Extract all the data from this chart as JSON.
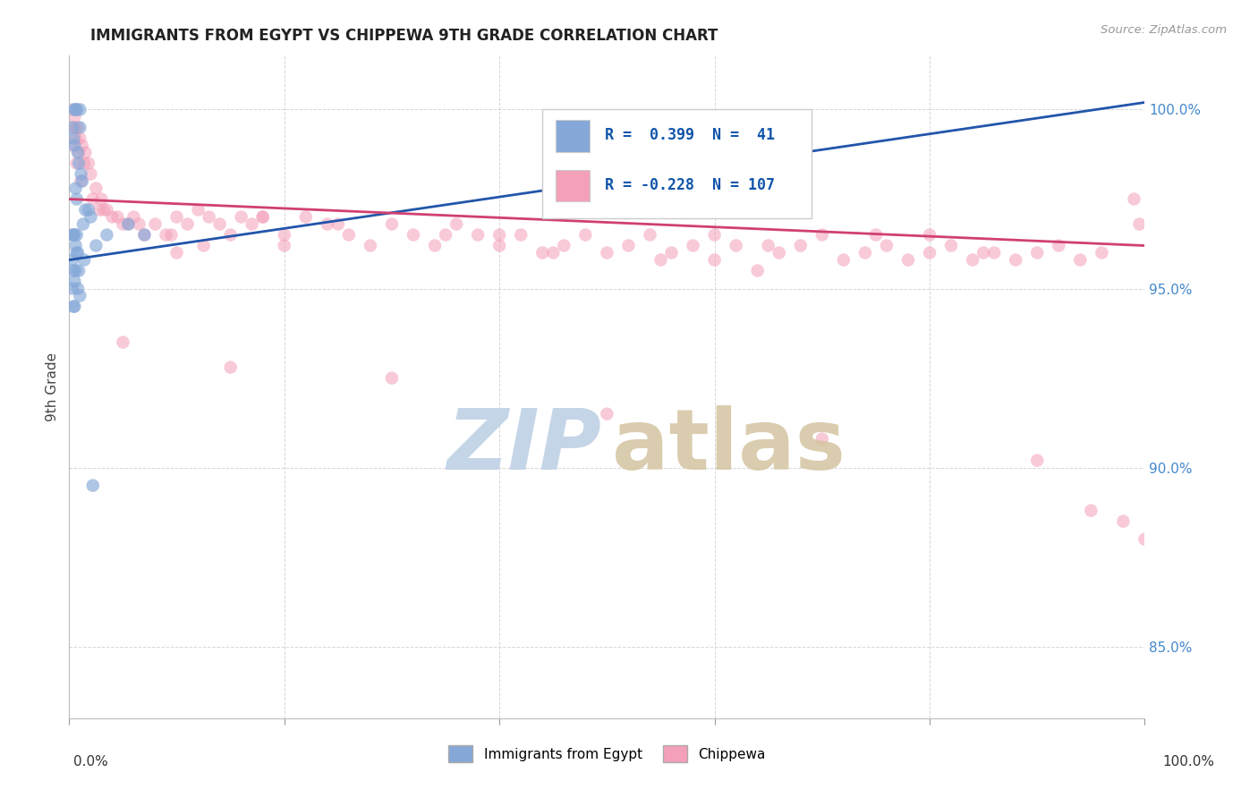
{
  "title": "IMMIGRANTS FROM EGYPT VS CHIPPEWA 9TH GRADE CORRELATION CHART",
  "source": "Source: ZipAtlas.com",
  "ylabel": "9th Grade",
  "xlim": [
    0.0,
    100.0
  ],
  "ylim": [
    83.0,
    101.5
  ],
  "yticks": [
    85.0,
    90.0,
    95.0,
    100.0
  ],
  "ytick_labels": [
    "85.0%",
    "90.0%",
    "95.0%",
    "100.0%"
  ],
  "xticks": [
    0.0,
    20.0,
    40.0,
    60.0,
    80.0,
    100.0
  ],
  "blue_R": 0.399,
  "blue_N": 41,
  "pink_R": -0.228,
  "pink_N": 107,
  "blue_color": "#85a8d8",
  "pink_color": "#f4a0b8",
  "blue_line_color": "#2255aa",
  "pink_line_color": "#d04070",
  "background_color": "#ffffff",
  "grid_color": "#cccccc",
  "blue_line_x0": 0.0,
  "blue_line_y0": 95.8,
  "blue_line_x1": 100.0,
  "blue_line_y1": 100.2,
  "pink_line_x0": 0.0,
  "pink_line_y0": 97.5,
  "pink_line_x1": 100.0,
  "pink_line_y1": 96.2,
  "blue_x": [
    0.5,
    0.6,
    0.7,
    1.0,
    1.0,
    0.3,
    0.4,
    0.5,
    0.8,
    0.9,
    1.1,
    1.2,
    0.6,
    0.7,
    1.5,
    2.0,
    1.8,
    1.3,
    0.4,
    0.3,
    0.6,
    0.8,
    0.5,
    0.7,
    0.3,
    0.4,
    0.6,
    0.5,
    0.8,
    1.0,
    0.9,
    0.7,
    1.4,
    3.5,
    5.5,
    7.0,
    2.5,
    0.3,
    0.5,
    0.4,
    2.2
  ],
  "blue_y": [
    100.0,
    100.0,
    100.0,
    100.0,
    99.5,
    99.5,
    99.2,
    99.0,
    98.8,
    98.5,
    98.2,
    98.0,
    97.8,
    97.5,
    97.2,
    97.0,
    97.2,
    96.8,
    96.5,
    96.5,
    96.2,
    96.0,
    96.5,
    96.5,
    95.8,
    95.5,
    95.5,
    95.2,
    95.0,
    94.8,
    95.5,
    96.0,
    95.8,
    96.5,
    96.8,
    96.5,
    96.2,
    95.0,
    94.5,
    94.5,
    89.5
  ],
  "pink_x": [
    0.3,
    0.5,
    0.8,
    1.0,
    1.2,
    1.5,
    1.8,
    2.0,
    2.5,
    3.0,
    3.5,
    4.0,
    5.0,
    6.0,
    7.0,
    8.0,
    9.0,
    10.0,
    11.0,
    12.0,
    13.0,
    14.0,
    15.0,
    16.0,
    17.0,
    18.0,
    20.0,
    22.0,
    24.0,
    26.0,
    28.0,
    30.0,
    32.0,
    34.0,
    36.0,
    38.0,
    40.0,
    42.0,
    44.0,
    46.0,
    48.0,
    50.0,
    52.0,
    54.0,
    56.0,
    58.0,
    60.0,
    62.0,
    64.0,
    66.0,
    68.0,
    70.0,
    72.0,
    74.0,
    76.0,
    78.0,
    80.0,
    82.0,
    84.0,
    86.0,
    88.0,
    90.0,
    92.0,
    94.0,
    96.0,
    98.0,
    100.0,
    0.4,
    0.6,
    0.9,
    1.4,
    2.2,
    2.8,
    4.5,
    6.5,
    9.5,
    12.5,
    0.7,
    1.1,
    3.2,
    5.5,
    18.0,
    25.0,
    35.0,
    45.0,
    55.0,
    65.0,
    75.0,
    85.0,
    95.0,
    99.0,
    99.5,
    5.0,
    15.0,
    30.0,
    50.0,
    70.0,
    90.0,
    40.0,
    80.0,
    60.0,
    20.0,
    10.0,
    0.6,
    0.3
  ],
  "pink_y": [
    100.0,
    99.8,
    99.5,
    99.2,
    99.0,
    98.8,
    98.5,
    98.2,
    97.8,
    97.5,
    97.2,
    97.0,
    96.8,
    97.0,
    96.5,
    96.8,
    96.5,
    97.0,
    96.8,
    97.2,
    97.0,
    96.8,
    96.5,
    97.0,
    96.8,
    97.0,
    96.5,
    97.0,
    96.8,
    96.5,
    96.2,
    96.8,
    96.5,
    96.2,
    96.8,
    96.5,
    96.2,
    96.5,
    96.0,
    96.2,
    96.5,
    96.0,
    96.2,
    96.5,
    96.0,
    96.2,
    95.8,
    96.2,
    95.5,
    96.0,
    96.2,
    96.5,
    95.8,
    96.0,
    96.2,
    95.8,
    96.5,
    96.2,
    95.8,
    96.0,
    95.8,
    96.0,
    96.2,
    95.8,
    96.0,
    88.5,
    88.0,
    99.5,
    99.2,
    98.8,
    98.5,
    97.5,
    97.2,
    97.0,
    96.8,
    96.5,
    96.2,
    98.5,
    98.0,
    97.2,
    96.8,
    97.0,
    96.8,
    96.5,
    96.0,
    95.8,
    96.2,
    96.5,
    96.0,
    88.8,
    97.5,
    96.8,
    93.5,
    92.8,
    92.5,
    91.5,
    90.8,
    90.2,
    96.5,
    96.0,
    96.5,
    96.2,
    96.0,
    99.5,
    99.0
  ]
}
